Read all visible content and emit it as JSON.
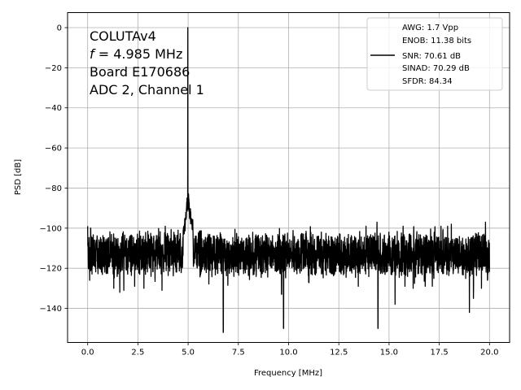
{
  "chart_data": {
    "type": "line",
    "xlabel": "Frequency [MHz]",
    "ylabel": "PSD [dB]",
    "xlim": [
      -1,
      21
    ],
    "ylim": [
      -157,
      7.5
    ],
    "xticks": [
      0.0,
      2.5,
      5.0,
      7.5,
      10.0,
      12.5,
      15.0,
      17.5,
      20.0
    ],
    "xtick_labels": [
      "0.0",
      "2.5",
      "5.0",
      "7.5",
      "10.0",
      "12.5",
      "15.0",
      "17.5",
      "20.0"
    ],
    "yticks": [
      0,
      -20,
      -40,
      -60,
      -80,
      -100,
      -120,
      -140
    ],
    "ytick_labels": [
      "0",
      "−20",
      "−40",
      "−60",
      "−80",
      "−100",
      "−120",
      "−140"
    ],
    "grid": true,
    "annotation": {
      "lines": [
        "COLUTAv4",
        "f = 4.985 MHz",
        "Board E170686",
        "ADC 2, Channel 1"
      ]
    },
    "legend": {
      "placement": "top-right",
      "entries": [
        "AWG: 1.7 Vpp",
        "ENOB: 11.38 bits",
        "SNR: 70.61 dB",
        "SINAD: 70.29 dB",
        "SFDR: 84.34"
      ]
    },
    "series": [
      {
        "color": "#000000",
        "noise_floor_db": -113,
        "noise_range_db": [
          -125,
          -100
        ],
        "x_range": [
          0.0,
          20.0
        ],
        "peak": {
          "x": 4.985,
          "y": 0
        },
        "spikes_up": [
          {
            "x": 0.0,
            "y": -99
          },
          {
            "x": 0.15,
            "y": -100
          },
          {
            "x": 2.8,
            "y": -101
          },
          {
            "x": 4.5,
            "y": -101
          },
          {
            "x": 14.4,
            "y": -97
          },
          {
            "x": 15.7,
            "y": -99
          },
          {
            "x": 18.1,
            "y": -98
          },
          {
            "x": 19.6,
            "y": -99
          },
          {
            "x": 19.8,
            "y": -97
          }
        ],
        "spikes_down": [
          {
            "x": 0.1,
            "y": -126
          },
          {
            "x": 1.3,
            "y": -130
          },
          {
            "x": 1.6,
            "y": -132
          },
          {
            "x": 1.8,
            "y": -131
          },
          {
            "x": 2.8,
            "y": -130
          },
          {
            "x": 3.7,
            "y": -131
          },
          {
            "x": 6.75,
            "y": -152
          },
          {
            "x": 9.65,
            "y": -133
          },
          {
            "x": 9.75,
            "y": -150
          },
          {
            "x": 11.0,
            "y": -127
          },
          {
            "x": 14.45,
            "y": -150
          },
          {
            "x": 15.3,
            "y": -138
          },
          {
            "x": 16.2,
            "y": -130
          },
          {
            "x": 16.8,
            "y": -129
          },
          {
            "x": 19.0,
            "y": -142
          },
          {
            "x": 19.2,
            "y": -135
          },
          {
            "x": 19.6,
            "y": -130
          },
          {
            "x": 19.9,
            "y": -126
          }
        ],
        "peak_skirt": [
          {
            "x": 4.75,
            "y": -104
          },
          {
            "x": 4.85,
            "y": -98
          },
          {
            "x": 4.9,
            "y": -94
          },
          {
            "x": 4.95,
            "y": -88
          },
          {
            "x": 5.02,
            "y": -86
          },
          {
            "x": 5.08,
            "y": -92
          },
          {
            "x": 5.15,
            "y": -96
          },
          {
            "x": 5.25,
            "y": -100
          }
        ]
      }
    ]
  }
}
